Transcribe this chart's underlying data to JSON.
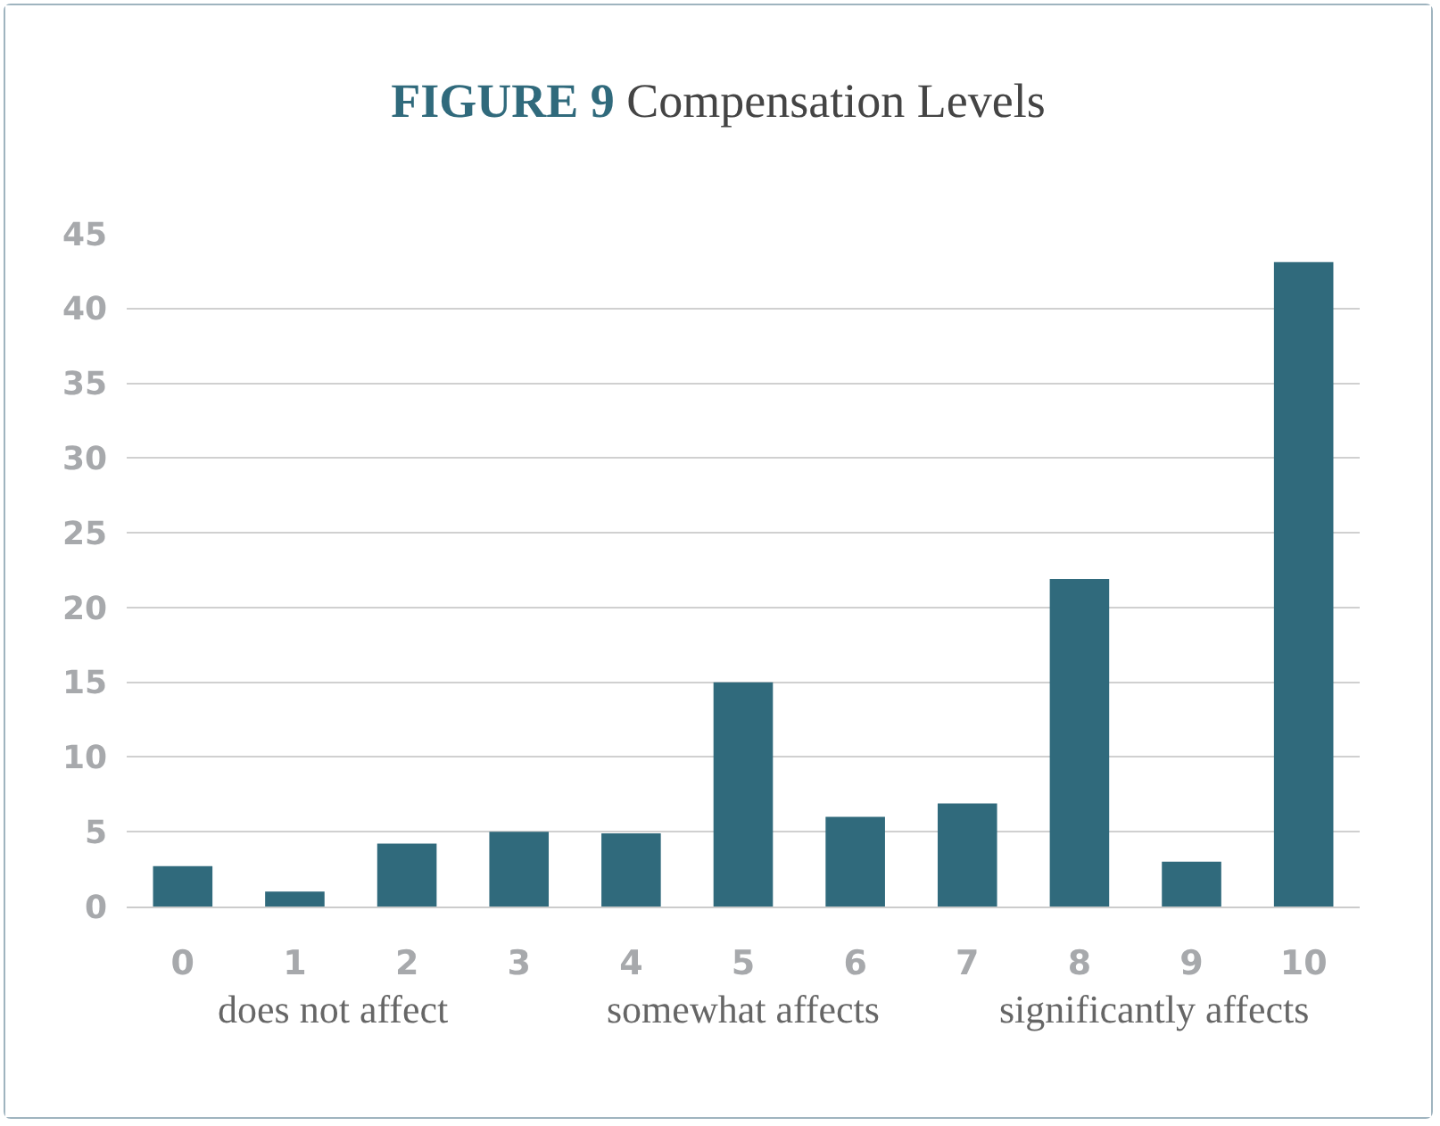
{
  "chart_data": {
    "type": "bar",
    "title": "FIGURE 9 Compensation Levels",
    "categories": [
      "0",
      "1",
      "2",
      "3",
      "4",
      "5",
      "6",
      "7",
      "8",
      "9",
      "10"
    ],
    "values": [
      2.7,
      1.0,
      4.2,
      5.0,
      4.9,
      15.0,
      6.0,
      6.9,
      21.9,
      3.0,
      43.1
    ],
    "color": "#306a7c",
    "ylim": [
      0,
      45
    ],
    "yticks": [
      0,
      5,
      10,
      15,
      20,
      25,
      30,
      35,
      40,
      45
    ],
    "grid": "y",
    "annotations": [
      "does not affect",
      "somewhat affects",
      "significantly affects"
    ]
  }
}
